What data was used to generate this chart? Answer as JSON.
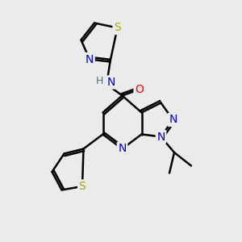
{
  "bg_color": "#ebebeb",
  "atom_colors": {
    "C": "#000000",
    "N": "#0000cc",
    "O": "#ff0000",
    "S": "#aaaa00",
    "H": "#507070"
  },
  "bond_color": "#000000",
  "bond_width": 1.8,
  "font_size": 10,
  "font_size_h": 9
}
